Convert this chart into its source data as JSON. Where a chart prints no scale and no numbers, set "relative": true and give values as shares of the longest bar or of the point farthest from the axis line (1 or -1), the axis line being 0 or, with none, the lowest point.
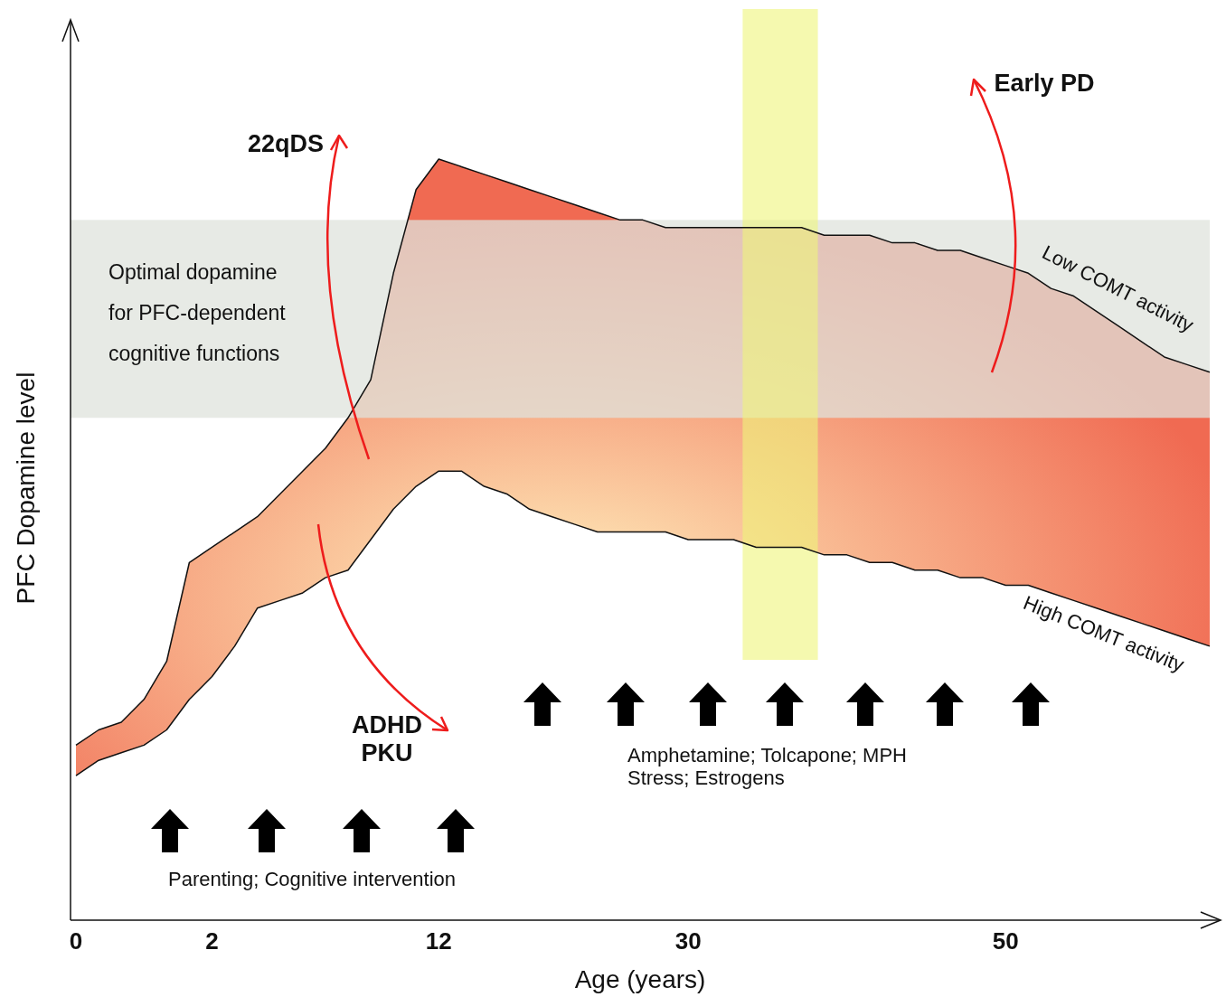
{
  "chart_data": {
    "type": "line",
    "relative": true,
    "xlabel": "Age (years)",
    "ylabel": "PFC Dopamine level",
    "categories": [
      "0",
      null,
      null,
      null,
      null,
      null,
      "2",
      null,
      null,
      null,
      null,
      null,
      null,
      null,
      null,
      null,
      "12",
      null,
      null,
      null,
      null,
      null,
      null,
      null,
      null,
      null,
      null,
      "30",
      null,
      null,
      null,
      null,
      null,
      null,
      null,
      null,
      null,
      null,
      null,
      null,
      null,
      "50",
      null,
      null,
      null,
      null,
      null,
      null,
      null,
      null,
      null
    ],
    "series": [
      {
        "color": "#111111",
        "lower": [
          0.19,
          0.21,
          0.22,
          0.23,
          0.25,
          0.29,
          0.32,
          0.36,
          0.41,
          0.42,
          0.43,
          0.45,
          0.46,
          0.5,
          0.54,
          0.57,
          0.59,
          0.59,
          0.57,
          0.56,
          0.54,
          0.53,
          0.52,
          0.51,
          0.51,
          0.51,
          0.51,
          0.5,
          0.5,
          0.5,
          0.49,
          0.49,
          0.49,
          0.48,
          0.48,
          0.47,
          0.47,
          0.46,
          0.46,
          0.45,
          0.45,
          0.44,
          0.44,
          0.43,
          0.42,
          0.41,
          0.4,
          0.39,
          0.38,
          0.37,
          0.36
        ],
        "upper": [
          0.23,
          0.25,
          0.26,
          0.29,
          0.34,
          0.47,
          0.49,
          0.51,
          0.53,
          0.56,
          0.59,
          0.62,
          0.66,
          0.71,
          0.85,
          0.96,
          1,
          0.99,
          0.98,
          0.97,
          0.96,
          0.95,
          0.94,
          0.93,
          0.92,
          0.92,
          0.91,
          0.91,
          0.91,
          0.91,
          0.91,
          0.91,
          0.91,
          0.9,
          0.9,
          0.9,
          0.89,
          0.89,
          0.88,
          0.88,
          0.87,
          0.86,
          0.85,
          0.83,
          0.82,
          0.8,
          0.78,
          0.76,
          0.74,
          0.73,
          0.72
        ],
        "values": [
          0.23,
          0.25,
          0.26,
          0.29,
          0.34,
          0.47,
          0.49,
          0.51,
          0.53,
          0.56,
          0.59,
          0.62,
          0.66,
          0.71,
          0.85,
          0.96,
          1,
          0.99,
          0.98,
          0.97,
          0.96,
          0.95,
          0.94,
          0.93,
          0.92,
          0.92,
          0.91,
          0.91,
          0.91,
          0.91,
          0.91,
          0.91,
          0.91,
          0.9,
          0.9,
          0.9,
          0.89,
          0.89,
          0.88,
          0.88,
          0.87,
          0.86,
          0.85,
          0.83,
          0.82,
          0.8,
          0.78,
          0.76,
          0.74,
          0.73,
          0.72
        ]
      },
      {
        "color": "#111111",
        "values": [
          0.19,
          0.21,
          0.22,
          0.23,
          0.25,
          0.29,
          0.32,
          0.36,
          0.41,
          0.42,
          0.43,
          0.45,
          0.46,
          0.5,
          0.54,
          0.57,
          0.59,
          0.59,
          0.57,
          0.56,
          0.54,
          0.53,
          0.52,
          0.51,
          0.51,
          0.51,
          0.51,
          0.5,
          0.5,
          0.5,
          0.49,
          0.49,
          0.49,
          0.48,
          0.48,
          0.47,
          0.47,
          0.46,
          0.46,
          0.45,
          0.45,
          0.44,
          0.44,
          0.43,
          0.42,
          0.41,
          0.4,
          0.39,
          0.38,
          0.37,
          0.36
        ]
      }
    ],
    "bands": [
      {
        "axis": "y",
        "from": 0.66,
        "to": 0.92,
        "label": "Optimal dopamine\nfor PFC-dependent\ncognitive functions",
        "color": "#dfe3dc"
      }
    ],
    "annotations": [
      "Low COMT activity",
      "High COMT activity",
      "22qDS",
      "Early PD",
      "ADHD\nPKU",
      "Parenting; Cognitive intervention",
      "Amphetamine; Tolcapone; MPH\nStress; Estrogens"
    ]
  }
}
